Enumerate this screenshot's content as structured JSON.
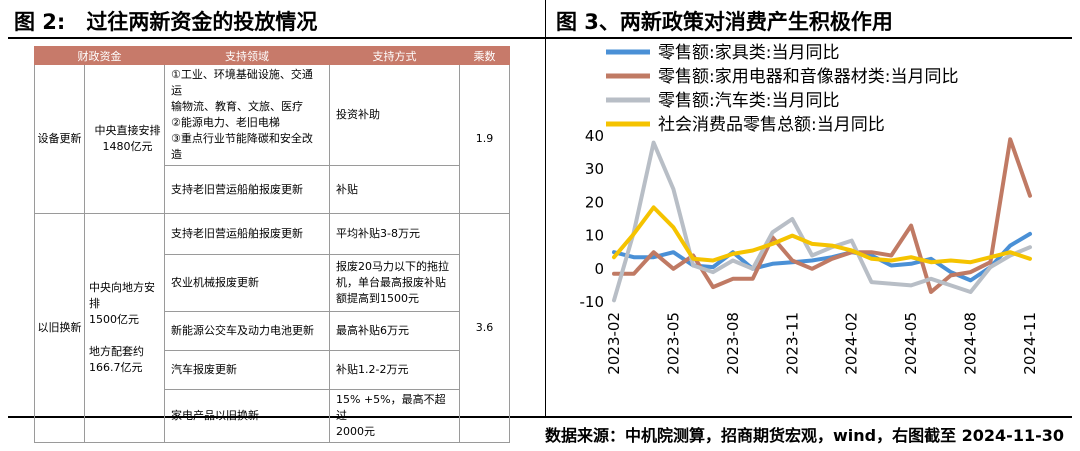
{
  "left_panel": {
    "title": "图 2:　过往两新资金的投放情况",
    "table": {
      "headers": [
        "财政资金",
        "支持领域",
        "支持方式",
        "乘数"
      ],
      "groups": [
        {
          "name": "设备更新",
          "funding": [
            "中央直接安排",
            "1480亿元"
          ],
          "multiplier": "1.9",
          "rows": [
            {
              "area": [
                "①工业、环境基础设施、交通运",
                "输物流、教育、文旅、医疗",
                "②能源电力、老旧电梯",
                "③重点行业节能降碳和安全改造"
              ],
              "method": [
                "投资补助"
              ]
            },
            {
              "area": [
                "支持老旧营运船舶报废更新"
              ],
              "method": [
                "补贴"
              ]
            }
          ]
        },
        {
          "name": "以旧换新",
          "funding": [
            "中央向地方安排",
            "1500亿元",
            "",
            "地方配套约",
            "166.7亿元"
          ],
          "multiplier": "3.6",
          "rows": [
            {
              "area": [
                "支持老旧营运船舶报废更新"
              ],
              "method": [
                "平均补贴3-8万元"
              ]
            },
            {
              "area": [
                "农业机械报废更新"
              ],
              "method": [
                "报废20马力以下的拖拉",
                "机，单台最高报废补贴",
                "额提高到1500元"
              ]
            },
            {
              "area": [
                "新能源公交车及动力电池更新"
              ],
              "method": [
                "最高补贴6万元"
              ]
            },
            {
              "area": [
                "汽车报废更新"
              ],
              "method": [
                "补贴1.2-2万元"
              ]
            },
            {
              "area": [
                "家电产品以旧换新"
              ],
              "method": [
                "15% +5%，最高不超过",
                "2000元"
              ]
            }
          ]
        }
      ]
    }
  },
  "right_panel": {
    "title": "图 3、两新政策对消费产生积极作用"
  },
  "source": "数据来源：中机院测算，招商期货宏观，wind，右图截至 2024-11-30",
  "chart_data": {
    "type": "line",
    "title": "",
    "xlabel": "",
    "ylabel": "",
    "x": [
      "2023-02",
      "2023-03",
      "2023-04",
      "2023-05",
      "2023-06",
      "2023-07",
      "2023-08",
      "2023-09",
      "2023-10",
      "2023-11",
      "2023-12",
      "2024-01",
      "2024-02",
      "2024-03",
      "2024-04",
      "2024-05",
      "2024-06",
      "2024-07",
      "2024-08",
      "2024-09",
      "2024-10",
      "2024-11"
    ],
    "x_tick_labels": [
      "2023-02",
      "2023-05",
      "2023-08",
      "2023-11",
      "2024-02",
      "2024-05",
      "2024-08",
      "2024-11"
    ],
    "ylim": [
      -10,
      40
    ],
    "yticks": [
      "-10",
      "0",
      "10",
      "20",
      "30",
      "40"
    ],
    "legend_position": "top",
    "series": [
      {
        "name": "零售额:家具类:当月同比",
        "color": "#4a90d6",
        "values": [
          5,
          3.5,
          3.5,
          5,
          1,
          0.5,
          5,
          0,
          1.5,
          2,
          2.5,
          3.5,
          5,
          4,
          1,
          1.5,
          3,
          -1,
          -3.5,
          0.5,
          7,
          10.5
        ]
      },
      {
        "name": "零售额:家用电器和音像器材类:当月同比",
        "color": "#c07a64",
        "values": [
          -1.5,
          -1.5,
          5,
          0,
          4,
          -5.5,
          -3,
          -3,
          9.5,
          2.5,
          0,
          3,
          5,
          5,
          4,
          13,
          -7,
          -2,
          -1,
          2,
          39,
          22
        ]
      },
      {
        "name": "零售额:汽车类:当月同比",
        "color": "#b8bec6",
        "values": [
          -9.5,
          11,
          38,
          24,
          1,
          -1,
          2.5,
          0,
          11,
          15,
          4,
          6.5,
          8.5,
          -4,
          -4.5,
          -5,
          -3,
          -5,
          -7,
          0.5,
          4,
          6.5
        ]
      },
      {
        "name": "社会消费品零售总额:当月同比",
        "color": "#f5c300",
        "values": [
          3.5,
          10.5,
          18.5,
          12.5,
          3,
          2.5,
          4.5,
          5.5,
          7.5,
          10,
          7.5,
          7,
          5.5,
          3,
          2.5,
          3.5,
          2,
          2.5,
          2,
          3.5,
          5,
          3
        ]
      }
    ]
  }
}
